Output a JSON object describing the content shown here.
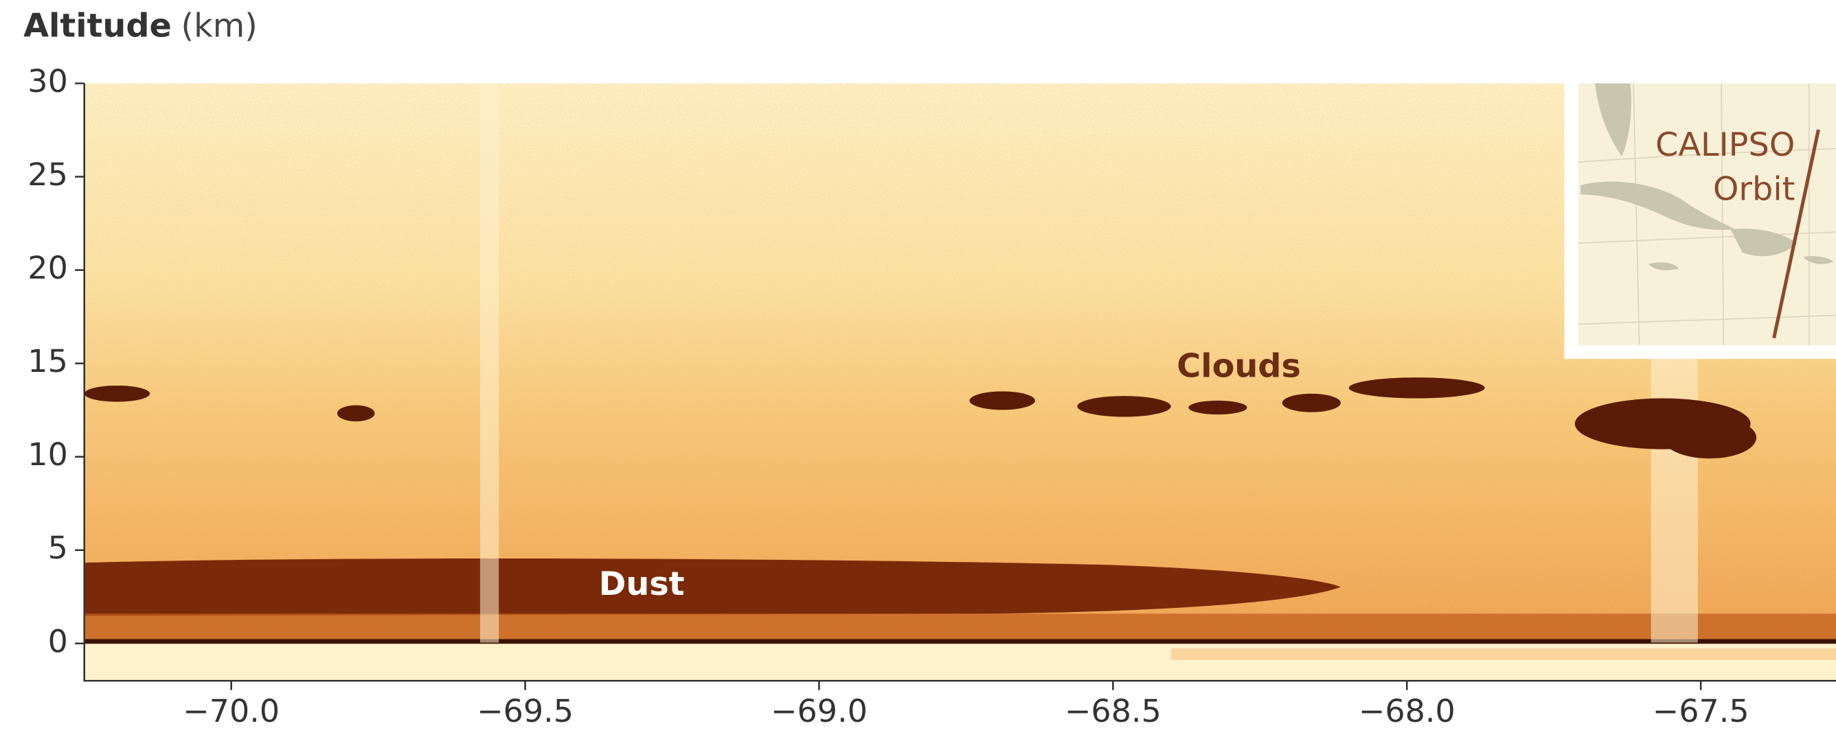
{
  "chart_data": {
    "type": "image",
    "ylabel": "Altitude",
    "yunit": "(km)",
    "xlim": [
      -70.25,
      -67.27
    ],
    "ylim": [
      -2,
      30
    ],
    "xticks": [
      {
        "value": -70,
        "label": "−70.0"
      },
      {
        "value": -69.5,
        "label": "−69.5"
      },
      {
        "value": -69,
        "label": "−69.0"
      },
      {
        "value": -68.5,
        "label": "−68.5"
      },
      {
        "value": -68,
        "label": "−68.0"
      },
      {
        "value": -67.5,
        "label": "−67.5"
      }
    ],
    "yticks": [
      0,
      5,
      10,
      15,
      20,
      25,
      30
    ],
    "annotations": {
      "clouds": "Clouds",
      "dust": "Dust",
      "inset_line1": "CALIPSO",
      "inset_line2": "Orbit"
    }
  }
}
